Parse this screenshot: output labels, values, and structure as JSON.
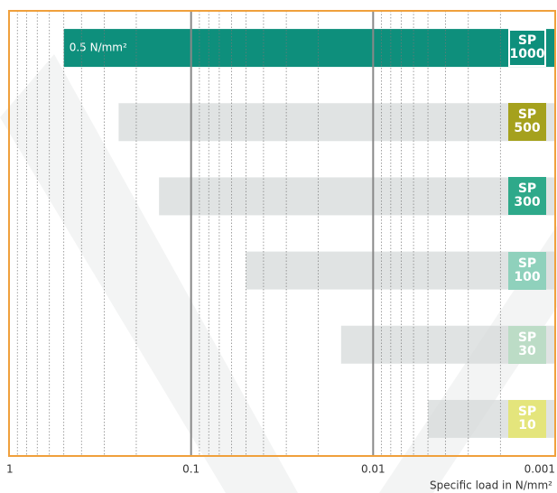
{
  "chart_data": {
    "type": "bar",
    "orientation": "horizontal",
    "x_label": "Specific load in N/mm²",
    "categories": [
      "SP 1000",
      "SP 500",
      "SP 300",
      "SP 100",
      "SP 30",
      "SP 10"
    ],
    "values": [
      0.5,
      0.25,
      0.15,
      0.05,
      0.015,
      0.005
    ],
    "value_labels": [
      "0.5 N/mm²",
      null,
      null,
      null,
      null,
      null
    ],
    "bar_colors": [
      "#0e8f7c",
      "#d5d9da",
      "#d5d9da",
      "#d5d9da",
      "#d5d9da",
      "#d5d9da"
    ],
    "badge_colors": [
      "#0e8f7c",
      "#a5a11d",
      "#2ea98a",
      "#8fd1bc",
      "#bcdcc6",
      "#e4e57c"
    ],
    "xlim": [
      1,
      0.001
    ],
    "xticks": [
      1,
      0.1,
      0.01,
      0.001
    ],
    "xscale": "log",
    "grid": true,
    "frame_color": "#f0a03c"
  }
}
